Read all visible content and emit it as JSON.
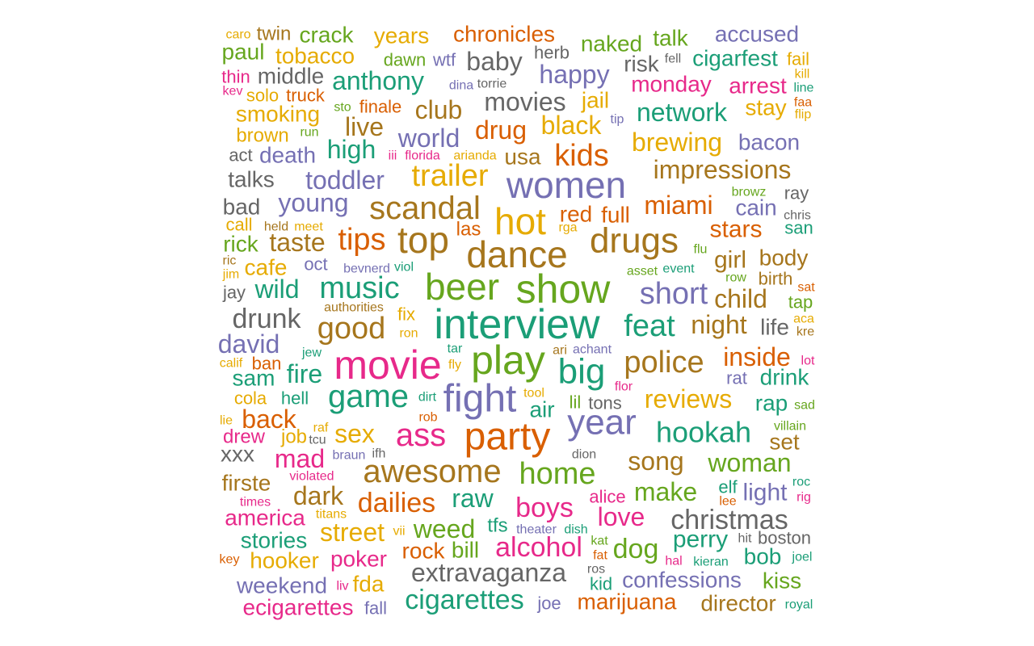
{
  "palette": {
    "teal": "#1b9e77",
    "orange": "#d95f02",
    "purple": "#7570b3",
    "pink": "#e7298a",
    "green": "#66a61e",
    "gold": "#e6ab02",
    "brown": "#a6761d",
    "gray": "#666666"
  },
  "words": [
    {
      "text": "interview",
      "color": "teal"
    },
    {
      "text": "show",
      "color": "green"
    },
    {
      "text": "play",
      "color": "green"
    },
    {
      "text": "party",
      "color": "orange"
    },
    {
      "text": "dance",
      "color": "brown"
    },
    {
      "text": "women",
      "color": "purple"
    },
    {
      "text": "movie",
      "color": "pink"
    },
    {
      "text": "fight",
      "color": "purple"
    },
    {
      "text": "drugs",
      "color": "brown"
    },
    {
      "text": "beer",
      "color": "green"
    },
    {
      "text": "top",
      "color": "brown"
    },
    {
      "text": "hot",
      "color": "gold"
    },
    {
      "text": "big",
      "color": "teal"
    },
    {
      "text": "year",
      "color": "purple"
    },
    {
      "text": "scandal",
      "color": "brown"
    },
    {
      "text": "game",
      "color": "teal"
    },
    {
      "text": "awesome",
      "color": "brown"
    },
    {
      "text": "police",
      "color": "brown"
    },
    {
      "text": "music",
      "color": "teal"
    },
    {
      "text": "ass",
      "color": "pink"
    },
    {
      "text": "good",
      "color": "brown"
    },
    {
      "text": "feat",
      "color": "teal"
    },
    {
      "text": "short",
      "color": "purple"
    },
    {
      "text": "trailer",
      "color": "gold"
    },
    {
      "text": "extravaganza",
      "color": "gray"
    },
    {
      "text": "home",
      "color": "green"
    },
    {
      "text": "christmas",
      "color": "gray"
    },
    {
      "text": "impressions",
      "color": "brown"
    },
    {
      "text": "cigarettes",
      "color": "teal"
    },
    {
      "text": "kids",
      "color": "orange"
    },
    {
      "text": "tips",
      "color": "orange"
    },
    {
      "text": "hookah",
      "color": "teal"
    },
    {
      "text": "alcohol",
      "color": "pink"
    },
    {
      "text": "reviews",
      "color": "gold"
    },
    {
      "text": "brewing",
      "color": "gold"
    },
    {
      "text": "woman",
      "color": "green"
    },
    {
      "text": "song",
      "color": "brown"
    },
    {
      "text": "dailies",
      "color": "orange"
    },
    {
      "text": "toddler",
      "color": "purple"
    },
    {
      "text": "network",
      "color": "teal"
    },
    {
      "text": "movies",
      "color": "gray"
    },
    {
      "text": "anthony",
      "color": "teal"
    },
    {
      "text": "boys",
      "color": "pink"
    },
    {
      "text": "drunk",
      "color": "gray"
    },
    {
      "text": "miami",
      "color": "orange"
    },
    {
      "text": "black",
      "color": "gold"
    },
    {
      "text": "world",
      "color": "purple"
    },
    {
      "text": "young",
      "color": "purple"
    },
    {
      "text": "taste",
      "color": "brown"
    },
    {
      "text": "night",
      "color": "brown"
    },
    {
      "text": "child",
      "color": "brown"
    },
    {
      "text": "inside",
      "color": "orange"
    },
    {
      "text": "mad",
      "color": "pink"
    },
    {
      "text": "love",
      "color": "pink"
    },
    {
      "text": "make",
      "color": "green"
    },
    {
      "text": "dog",
      "color": "green"
    },
    {
      "text": "weed",
      "color": "green"
    },
    {
      "text": "marijuana",
      "color": "orange"
    },
    {
      "text": "confessions",
      "color": "purple"
    },
    {
      "text": "happy",
      "color": "purple"
    },
    {
      "text": "baby",
      "color": "gray"
    },
    {
      "text": "dark",
      "color": "brown"
    },
    {
      "text": "raw",
      "color": "teal"
    },
    {
      "text": "back",
      "color": "orange"
    },
    {
      "text": "david",
      "color": "purple"
    },
    {
      "text": "street",
      "color": "gold"
    },
    {
      "text": "club",
      "color": "brown"
    },
    {
      "text": "drug",
      "color": "orange"
    },
    {
      "text": "high",
      "color": "teal"
    },
    {
      "text": "live",
      "color": "brown"
    },
    {
      "text": "wild",
      "color": "teal"
    },
    {
      "text": "girl",
      "color": "brown"
    },
    {
      "text": "stars",
      "color": "orange"
    },
    {
      "text": "fire",
      "color": "teal"
    },
    {
      "text": "sex",
      "color": "gold"
    },
    {
      "text": "perry",
      "color": "teal"
    },
    {
      "text": "director",
      "color": "brown"
    },
    {
      "text": "weekend",
      "color": "purple"
    },
    {
      "text": "ecigarettes",
      "color": "pink"
    },
    {
      "text": "stories",
      "color": "teal"
    },
    {
      "text": "america",
      "color": "pink"
    },
    {
      "text": "poker",
      "color": "pink"
    },
    {
      "text": "hooker",
      "color": "gold"
    },
    {
      "text": "accused",
      "color": "purple"
    },
    {
      "text": "tobacco",
      "color": "gold"
    },
    {
      "text": "chronicles",
      "color": "orange"
    },
    {
      "text": "middle",
      "color": "gray"
    },
    {
      "text": "smoking",
      "color": "gold"
    },
    {
      "text": "monday",
      "color": "pink"
    },
    {
      "text": "cigarfest",
      "color": "teal"
    },
    {
      "text": "arrest",
      "color": "pink"
    },
    {
      "text": "naked",
      "color": "green"
    },
    {
      "text": "years",
      "color": "gold"
    },
    {
      "text": "crack",
      "color": "green"
    },
    {
      "text": "paul",
      "color": "green"
    },
    {
      "text": "twin",
      "color": "brown"
    },
    {
      "text": "talk",
      "color": "green"
    },
    {
      "text": "risk",
      "color": "gray"
    },
    {
      "text": "stay",
      "color": "gold"
    },
    {
      "text": "jail",
      "color": "gold"
    },
    {
      "text": "bacon",
      "color": "purple"
    },
    {
      "text": "death",
      "color": "purple"
    },
    {
      "text": "talks",
      "color": "gray"
    },
    {
      "text": "bad",
      "color": "gray"
    },
    {
      "text": "usa",
      "color": "brown"
    },
    {
      "text": "red",
      "color": "orange"
    },
    {
      "text": "full",
      "color": "orange"
    },
    {
      "text": "body",
      "color": "brown"
    },
    {
      "text": "cain",
      "color": "purple"
    },
    {
      "text": "rick",
      "color": "green"
    },
    {
      "text": "cafe",
      "color": "gold"
    },
    {
      "text": "las",
      "color": "orange"
    },
    {
      "text": "life",
      "color": "gray"
    },
    {
      "text": "sam",
      "color": "teal"
    },
    {
      "text": "drink",
      "color": "teal"
    },
    {
      "text": "rap",
      "color": "teal"
    },
    {
      "text": "air",
      "color": "teal"
    },
    {
      "text": "set",
      "color": "brown"
    },
    {
      "text": "light",
      "color": "purple"
    },
    {
      "text": "rock",
      "color": "orange"
    },
    {
      "text": "bill",
      "color": "green"
    },
    {
      "text": "bob",
      "color": "teal"
    },
    {
      "text": "kiss",
      "color": "green"
    },
    {
      "text": "fda",
      "color": "gold"
    },
    {
      "text": "firste",
      "color": "brown"
    },
    {
      "text": "xxx",
      "color": "gray"
    },
    {
      "text": "job",
      "color": "gold"
    },
    {
      "text": "drew",
      "color": "pink"
    },
    {
      "text": "brown",
      "color": "gold"
    },
    {
      "text": "solo",
      "color": "gold"
    },
    {
      "text": "truck",
      "color": "orange"
    },
    {
      "text": "thin",
      "color": "pink"
    },
    {
      "text": "finale",
      "color": "orange"
    },
    {
      "text": "dawn",
      "color": "green"
    },
    {
      "text": "wtf",
      "color": "purple"
    },
    {
      "text": "herb",
      "color": "gray"
    },
    {
      "text": "tfs",
      "color": "teal"
    },
    {
      "text": "hell",
      "color": "teal"
    },
    {
      "text": "cola",
      "color": "gold"
    },
    {
      "text": "ban",
      "color": "orange"
    },
    {
      "text": "fail",
      "color": "gold"
    },
    {
      "text": "joe",
      "color": "purple"
    },
    {
      "text": "fall",
      "color": "purple"
    },
    {
      "text": "oct",
      "color": "purple"
    },
    {
      "text": "jay",
      "color": "gray"
    },
    {
      "text": "act",
      "color": "gray"
    },
    {
      "text": "call",
      "color": "gold"
    },
    {
      "text": "lil",
      "color": "green"
    },
    {
      "text": "tons",
      "color": "gray"
    },
    {
      "text": "ray",
      "color": "gray"
    },
    {
      "text": "fix",
      "color": "gold"
    },
    {
      "text": "tap",
      "color": "green"
    },
    {
      "text": "birth",
      "color": "brown"
    },
    {
      "text": "row",
      "color": "green"
    },
    {
      "text": "caro",
      "color": "gold"
    },
    {
      "text": "kev",
      "color": "pink"
    },
    {
      "text": "sto",
      "color": "green"
    },
    {
      "text": "run",
      "color": "green"
    },
    {
      "text": "iii",
      "color": "pink"
    },
    {
      "text": "florida",
      "color": "pink"
    },
    {
      "text": "arianda",
      "color": "gold"
    },
    {
      "text": "dina",
      "color": "purple"
    },
    {
      "text": "torrie",
      "color": "gray"
    },
    {
      "text": "tip",
      "color": "purple"
    },
    {
      "text": "fell",
      "color": "gray"
    },
    {
      "text": "kill",
      "color": "gold"
    },
    {
      "text": "line",
      "color": "teal"
    },
    {
      "text": "faa",
      "color": "orange"
    },
    {
      "text": "flip",
      "color": "gold"
    },
    {
      "text": "browz",
      "color": "green"
    },
    {
      "text": "chris",
      "color": "gray"
    },
    {
      "text": "san",
      "color": "teal"
    },
    {
      "text": "held",
      "color": "brown"
    },
    {
      "text": "meet",
      "color": "gold"
    },
    {
      "text": "rga",
      "color": "gold"
    },
    {
      "text": "flu",
      "color": "green"
    },
    {
      "text": "asset",
      "color": "green"
    },
    {
      "text": "event",
      "color": "teal"
    },
    {
      "text": "ric",
      "color": "brown"
    },
    {
      "text": "jim",
      "color": "gold"
    },
    {
      "text": "bevnerd",
      "color": "purple"
    },
    {
      "text": "viol",
      "color": "teal"
    },
    {
      "text": "sat",
      "color": "orange"
    },
    {
      "text": "authorities",
      "color": "brown"
    },
    {
      "text": "aca",
      "color": "gold"
    },
    {
      "text": "ron",
      "color": "gold"
    },
    {
      "text": "kre",
      "color": "brown"
    },
    {
      "text": "jew",
      "color": "teal"
    },
    {
      "text": "tar",
      "color": "teal"
    },
    {
      "text": "ari",
      "color": "brown"
    },
    {
      "text": "achant",
      "color": "purple"
    },
    {
      "text": "calif",
      "color": "gold"
    },
    {
      "text": "fly",
      "color": "gold"
    },
    {
      "text": "lot",
      "color": "pink"
    },
    {
      "text": "rat",
      "color": "purple"
    },
    {
      "text": "flor",
      "color": "pink"
    },
    {
      "text": "tool",
      "color": "gold"
    },
    {
      "text": "dirt",
      "color": "teal"
    },
    {
      "text": "sad",
      "color": "green"
    },
    {
      "text": "lie",
      "color": "gold"
    },
    {
      "text": "rob",
      "color": "orange"
    },
    {
      "text": "raf",
      "color": "gold"
    },
    {
      "text": "villain",
      "color": "green"
    },
    {
      "text": "tcu",
      "color": "gray"
    },
    {
      "text": "dion",
      "color": "gray"
    },
    {
      "text": "braun",
      "color": "purple"
    },
    {
      "text": "ifh",
      "color": "gray"
    },
    {
      "text": "violated",
      "color": "pink"
    },
    {
      "text": "roc",
      "color": "teal"
    },
    {
      "text": "alice",
      "color": "pink"
    },
    {
      "text": "elf",
      "color": "teal"
    },
    {
      "text": "rig",
      "color": "pink"
    },
    {
      "text": "lee",
      "color": "orange"
    },
    {
      "text": "times",
      "color": "pink"
    },
    {
      "text": "titans",
      "color": "gold"
    },
    {
      "text": "vii",
      "color": "gold"
    },
    {
      "text": "theater",
      "color": "purple"
    },
    {
      "text": "dish",
      "color": "teal"
    },
    {
      "text": "kat",
      "color": "green"
    },
    {
      "text": "hit",
      "color": "gray"
    },
    {
      "text": "boston",
      "color": "gray"
    },
    {
      "text": "fat",
      "color": "orange"
    },
    {
      "text": "key",
      "color": "orange"
    },
    {
      "text": "hal",
      "color": "pink"
    },
    {
      "text": "kieran",
      "color": "teal"
    },
    {
      "text": "joel",
      "color": "teal"
    },
    {
      "text": "ros",
      "color": "gray"
    },
    {
      "text": "kid",
      "color": "teal"
    },
    {
      "text": "liv",
      "color": "pink"
    },
    {
      "text": "royal",
      "color": "teal"
    }
  ]
}
